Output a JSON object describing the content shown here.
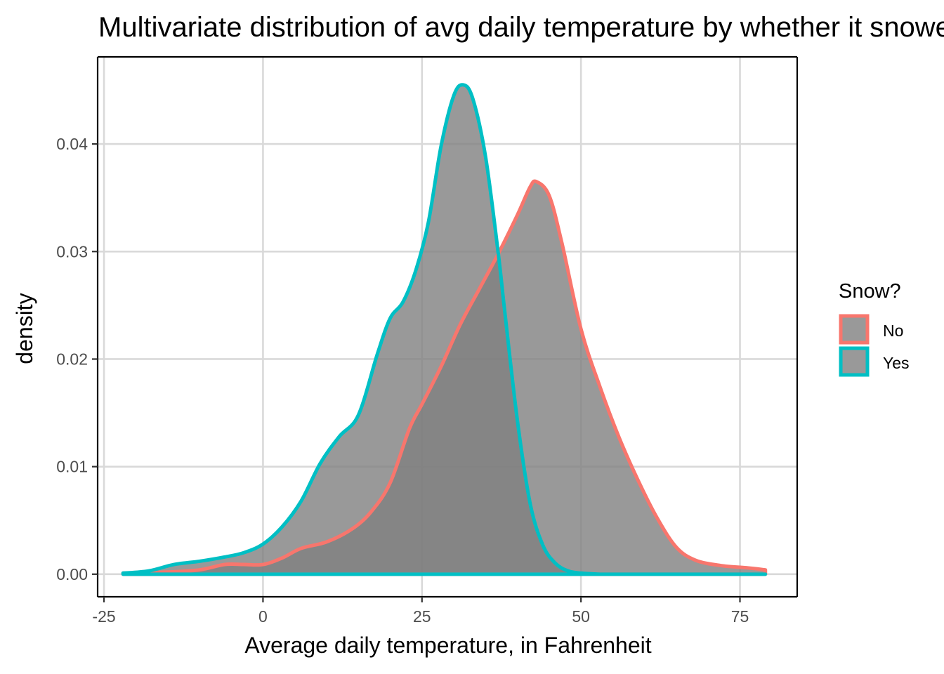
{
  "chart_data": {
    "type": "area",
    "title": "Multivariate distribution of avg daily temperature by whether it snowed",
    "xlabel": "Average daily temperature, in Fahrenheit",
    "ylabel": "density",
    "xlim": [
      -26,
      84
    ],
    "ylim": [
      -0.0021,
      0.0481
    ],
    "x_ticks": [
      -25,
      0,
      25,
      50,
      75
    ],
    "x_tick_labels": [
      "-25",
      "0",
      "25",
      "50",
      "75"
    ],
    "y_ticks": [
      0.0,
      0.01,
      0.02,
      0.03,
      0.04
    ],
    "y_tick_labels": [
      "0.00",
      "0.01",
      "0.02",
      "0.03",
      "0.04"
    ],
    "grid": true,
    "legend": {
      "title": "Snow?",
      "position": "right"
    },
    "fill_color": "#7f7f7f",
    "fill_opacity": 0.8,
    "series": [
      {
        "name": "No",
        "color": "#F8766D",
        "x": [
          -22,
          -15,
          -10,
          -6,
          -3,
          0,
          3,
          6,
          10,
          14,
          17,
          20,
          23,
          25,
          28,
          31,
          34,
          37,
          40,
          42,
          43,
          45,
          47,
          50,
          53,
          56,
          59,
          62,
          65,
          68,
          72,
          76,
          79
        ],
        "y": [
          0.0001,
          0.0002,
          0.0004,
          0.0009,
          0.0009,
          0.0009,
          0.0015,
          0.0024,
          0.003,
          0.0042,
          0.0058,
          0.0085,
          0.0135,
          0.0158,
          0.0193,
          0.0232,
          0.0265,
          0.0298,
          0.0334,
          0.036,
          0.0365,
          0.0352,
          0.0308,
          0.0228,
          0.0174,
          0.0127,
          0.0087,
          0.0052,
          0.0025,
          0.0013,
          0.0008,
          0.0006,
          0.0004
        ]
      },
      {
        "name": "Yes",
        "color": "#00BFC4",
        "x": [
          -22,
          -18,
          -14,
          -10,
          -6,
          -3,
          0,
          3,
          6,
          9,
          12,
          15,
          18,
          20,
          22,
          24,
          26,
          28,
          30,
          31.5,
          33,
          35,
          37,
          38,
          40,
          42,
          44,
          46,
          48,
          50,
          53,
          56,
          60,
          65,
          70,
          79
        ],
        "y": [
          0.0001,
          0.0003,
          0.0009,
          0.0012,
          0.0016,
          0.002,
          0.0028,
          0.0044,
          0.0068,
          0.0103,
          0.0128,
          0.0148,
          0.0205,
          0.0238,
          0.0253,
          0.0282,
          0.0327,
          0.0398,
          0.0445,
          0.0455,
          0.0442,
          0.0388,
          0.0298,
          0.0245,
          0.0143,
          0.0066,
          0.0027,
          0.001,
          0.0003,
          0.0001,
          0.0,
          0.0,
          0.0,
          0.0,
          0.0,
          0.0
        ]
      }
    ]
  }
}
